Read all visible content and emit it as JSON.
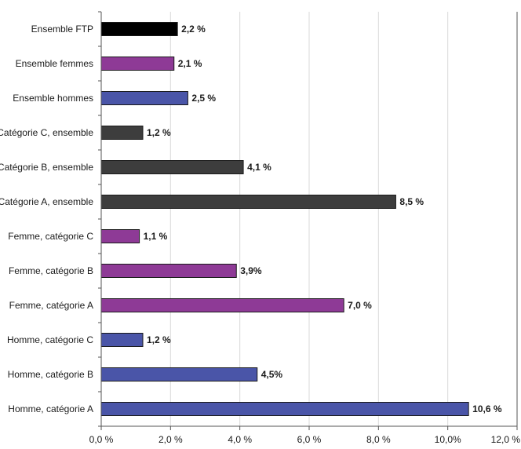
{
  "chart_data": {
    "type": "bar",
    "orientation": "horizontal",
    "categories": [
      "Ensemble FTP",
      "Ensemble femmes",
      "Ensemble hommes",
      "Catégorie C, ensemble",
      "Catégorie B, ensemble",
      "Catégorie A, ensemble",
      "Femme, catégorie C",
      "Femme, catégorie B",
      "Femme, catégorie A",
      "Homme, catégorie C",
      "Homme, catégorie B",
      "Homme, catégorie A"
    ],
    "values": [
      2.2,
      2.1,
      2.5,
      1.2,
      4.1,
      8.5,
      1.1,
      3.9,
      7.0,
      1.2,
      4.5,
      10.6
    ],
    "value_labels": [
      "2,2 %",
      "2,1 %",
      "2,5 %",
      "1,2 %",
      "4,1 %",
      "8,5 %",
      "1,1 %",
      "3,9%",
      "7,0 %",
      "1,2 %",
      "4,5%",
      "10,6 %"
    ],
    "colors": [
      "#000000",
      "#8e3a96",
      "#4a55a8",
      "#3d3d3d",
      "#3d3d3d",
      "#3d3d3d",
      "#8e3a96",
      "#8e3a96",
      "#8e3a96",
      "#4a55a8",
      "#4a55a8",
      "#4a55a8"
    ],
    "xlim": [
      0,
      12
    ],
    "xticks": [
      0,
      2,
      4,
      6,
      8,
      10,
      12
    ],
    "xtick_labels": [
      "0,0 %",
      "2,0 %",
      "4,0 %",
      "6,0 %",
      "8,0 %",
      "10,0%",
      "12,0 %"
    ],
    "grid": true,
    "title": "",
    "xlabel": "",
    "ylabel": ""
  }
}
